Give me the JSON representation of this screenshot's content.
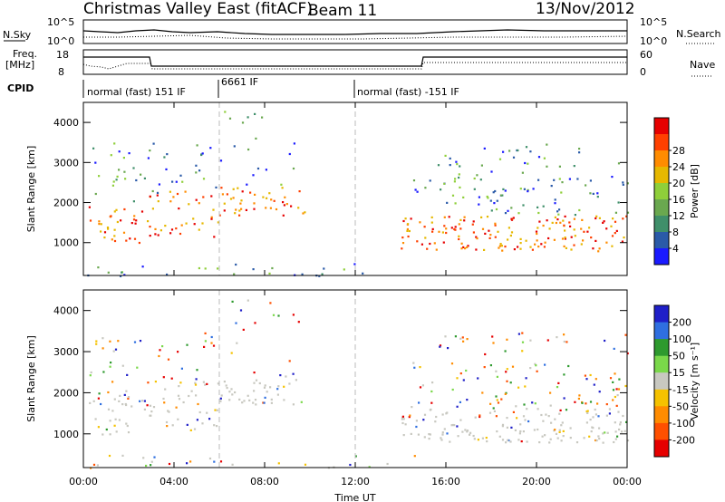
{
  "header": {
    "title": "Christmas Valley East (fitACF)",
    "beam": "Beam 11",
    "date": "13/Nov/2012"
  },
  "top_panels": {
    "nsky_label": "N.Sky",
    "nsky_ticks": [
      "10^5",
      "10^0"
    ],
    "nsearch_label": "N.Search",
    "nsearch_ticks": [
      "10^5",
      "10^0"
    ],
    "freq_label_1": "Freq.",
    "freq_label_2": "[MHz]",
    "freq_ticks": [
      "18",
      "8"
    ],
    "nave_label": "Nave",
    "nave_ticks": [
      "60",
      "0"
    ],
    "cpid_label": "CPID",
    "cpid_segments": [
      "normal (fast) 151 IF",
      "6661 IF",
      "normal (fast) -151 IF"
    ]
  },
  "chart_data": [
    {
      "type": "heatmap",
      "name": "power",
      "xlabel": "Time UT",
      "ylabel": "Slant Range [km]",
      "x_ticks": [
        "00:00",
        "04:00",
        "08:00",
        "12:00",
        "16:00",
        "20:00",
        "00:00"
      ],
      "y_ticks": [
        1000,
        2000,
        3000,
        4000
      ],
      "ylim": [
        180,
        4500
      ],
      "colorbar": {
        "label": "Power [dB]",
        "ticks": [
          4,
          8,
          12,
          16,
          20,
          24,
          28
        ],
        "colors": [
          "#1a1aff",
          "#2a5aa8",
          "#3f8f6a",
          "#6aa84f",
          "#8fcf3a",
          "#e6b800",
          "#ff8c00",
          "#ff4000",
          "#e60000"
        ]
      }
    },
    {
      "type": "heatmap",
      "name": "velocity",
      "xlabel": "Time UT",
      "ylabel": "Slant Range [km]",
      "x_ticks": [
        "00:00",
        "04:00",
        "08:00",
        "12:00",
        "16:00",
        "20:00",
        "00:00"
      ],
      "y_ticks": [
        1000,
        2000,
        3000,
        4000
      ],
      "ylim": [
        180,
        4500
      ],
      "colorbar": {
        "label": "Velocity [m s⁻¹]",
        "ticks": [
          200,
          100,
          50,
          15,
          -15,
          -50,
          -100,
          -200
        ],
        "colors": [
          "#1f1fc8",
          "#2f6fe0",
          "#2e9a2e",
          "#7ad84a",
          "#c8c8c0",
          "#f5c200",
          "#ff8c00",
          "#ff5000",
          "#e60000"
        ]
      }
    }
  ]
}
